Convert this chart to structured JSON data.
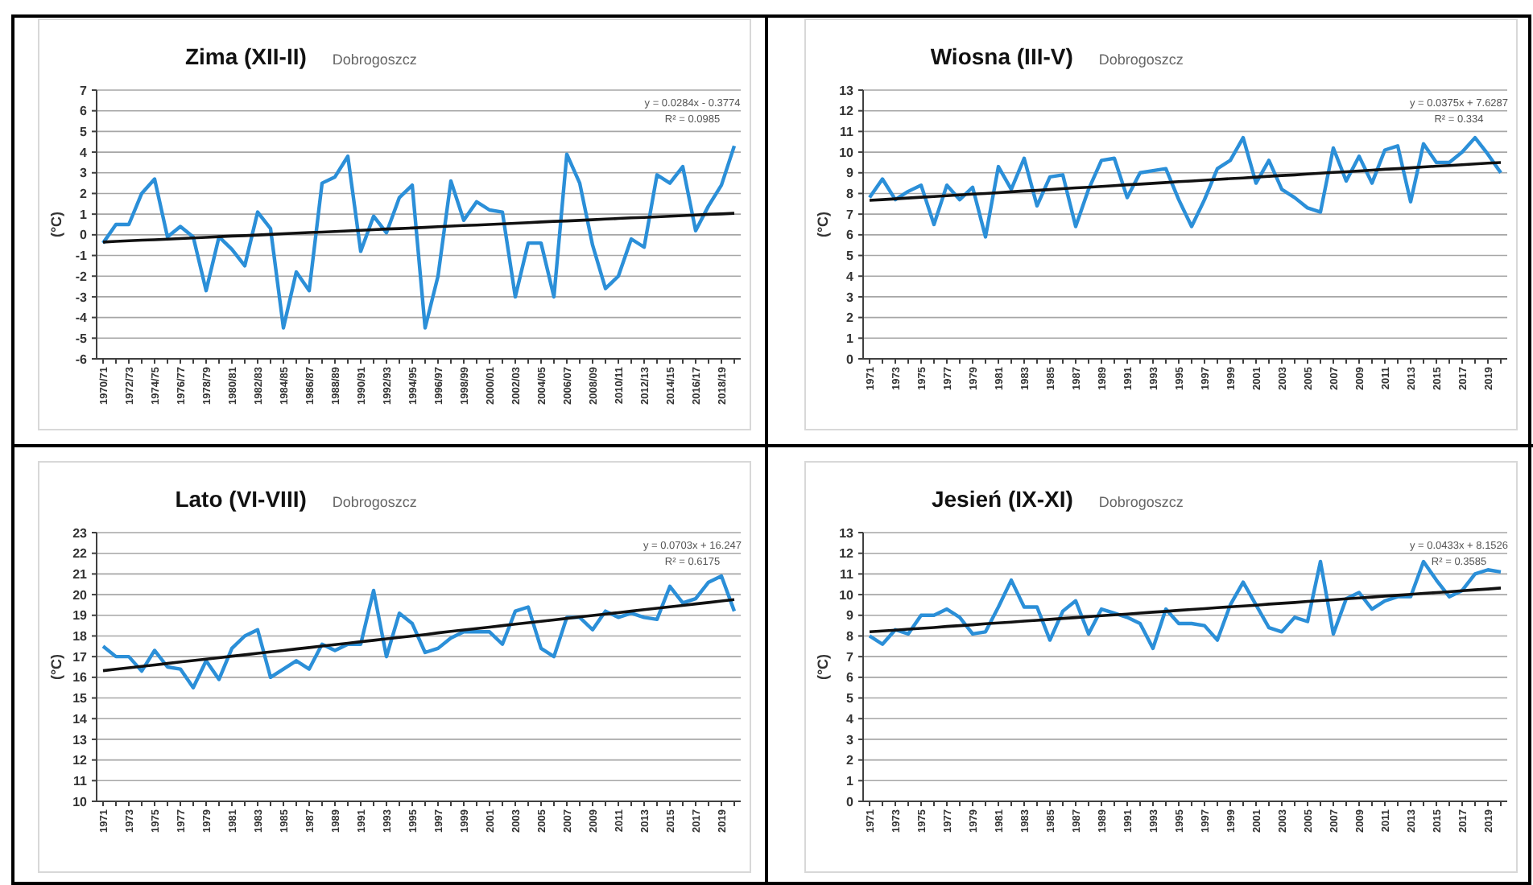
{
  "chart_data": [
    {
      "type": "line",
      "title": "Zima (XII-II)",
      "subtitle": "Dobrogoszcz",
      "ylabel": "(°C)",
      "annotations": [
        "y = 0.0284x - 0.3774",
        "R² = 0.0985"
      ],
      "grid": "y",
      "ylim": [
        -6,
        7
      ],
      "yticks": [
        -6,
        -5,
        -4,
        -3,
        -2,
        -1,
        0,
        1,
        2,
        3,
        4,
        5,
        6,
        7
      ],
      "categories": [
        "1970/71",
        null,
        "1972/73",
        null,
        "1974/75",
        null,
        "1976/77",
        null,
        "1978/79",
        null,
        "1980/81",
        null,
        "1982/83",
        null,
        "1984/85",
        null,
        "1986/87",
        null,
        "1988/89",
        null,
        "1990/91",
        null,
        "1992/93",
        null,
        "1994/95",
        null,
        "1996/97",
        null,
        "1998/99",
        null,
        "2000/01",
        null,
        "2002/03",
        null,
        "2004/05",
        null,
        "2006/07",
        null,
        "2008/09",
        null,
        "2010/11",
        null,
        "2012/13",
        null,
        "2014/15",
        null,
        "2016/17",
        null,
        "2018/19",
        null
      ],
      "series": [
        {
          "color": "#2b8fd8",
          "values": [
            -0.4,
            0.5,
            0.5,
            2.0,
            2.7,
            -0.1,
            0.4,
            -0.1,
            -2.7,
            -0.1,
            -0.7,
            -1.5,
            1.1,
            0.3,
            -4.5,
            -1.8,
            -2.7,
            2.5,
            2.8,
            3.8,
            -0.8,
            0.9,
            0.1,
            1.8,
            2.4,
            -4.5,
            -2.0,
            2.6,
            0.7,
            1.6,
            1.2,
            1.1,
            -3.0,
            -0.4,
            -0.4,
            -3.0,
            3.9,
            2.5,
            -0.5,
            -2.6,
            -2.0,
            -0.2,
            -0.6,
            2.9,
            2.5,
            3.3,
            0.2,
            1.4,
            2.4,
            4.3
          ]
        },
        {
          "type": "line",
          "color": "#111111",
          "values": [
            -0.35,
            -0.32,
            -0.29,
            -0.26,
            -0.24,
            -0.21,
            -0.18,
            -0.15,
            -0.12,
            -0.09,
            -0.06,
            -0.04,
            -0.01,
            0.02,
            0.05,
            0.08,
            0.11,
            0.13,
            0.16,
            0.19,
            0.22,
            0.25,
            0.28,
            0.3,
            0.33,
            0.36,
            0.39,
            0.42,
            0.45,
            0.47,
            0.5,
            0.53,
            0.56,
            0.59,
            0.62,
            0.65,
            0.67,
            0.7,
            0.73,
            0.76,
            0.79,
            0.82,
            0.84,
            0.87,
            0.9,
            0.93,
            0.96,
            0.99,
            1.01,
            1.04
          ]
        }
      ]
    },
    {
      "type": "line",
      "title": "Wiosna (III-V)",
      "subtitle": "Dobrogoszcz",
      "ylabel": "(°C)",
      "annotations": [
        "y = 0.0375x + 7.6287",
        "R² = 0.334"
      ],
      "grid": "y",
      "xlim": [
        1970.5,
        2020.5
      ],
      "ylim": [
        0,
        13
      ],
      "yticks": [
        0,
        1,
        2,
        3,
        4,
        5,
        6,
        7,
        8,
        9,
        10,
        11,
        12,
        13
      ],
      "xticks": [
        1971,
        1973,
        1975,
        1977,
        1979,
        1981,
        1983,
        1985,
        1987,
        1989,
        1991,
        1993,
        1995,
        1997,
        1999,
        2001,
        2003,
        2005,
        2007,
        2009,
        2011,
        2013,
        2015,
        2017,
        2019
      ],
      "x": [
        1971,
        1972,
        1973,
        1974,
        1975,
        1976,
        1977,
        1978,
        1979,
        1980,
        1981,
        1982,
        1983,
        1984,
        1985,
        1986,
        1987,
        1988,
        1989,
        1990,
        1991,
        1992,
        1993,
        1994,
        1995,
        1996,
        1997,
        1998,
        1999,
        2000,
        2001,
        2002,
        2003,
        2004,
        2005,
        2006,
        2007,
        2008,
        2009,
        2010,
        2011,
        2012,
        2013,
        2014,
        2015,
        2016,
        2017,
        2018,
        2019,
        2020
      ],
      "series": [
        {
          "color": "#2b8fd8",
          "values": [
            7.8,
            8.7,
            7.7,
            8.1,
            8.4,
            6.5,
            8.4,
            7.7,
            8.3,
            5.9,
            9.3,
            8.2,
            9.7,
            7.4,
            8.8,
            8.9,
            6.4,
            8.2,
            9.6,
            9.7,
            7.8,
            9.0,
            9.1,
            9.2,
            7.7,
            6.4,
            7.7,
            9.2,
            9.6,
            10.7,
            8.5,
            9.6,
            8.2,
            7.8,
            7.3,
            7.1,
            10.2,
            8.6,
            9.8,
            8.5,
            10.1,
            10.3,
            7.6,
            10.4,
            9.5,
            9.5,
            10.0,
            10.7,
            9.9,
            9.0
          ]
        },
        {
          "type": "line",
          "color": "#111111",
          "values": [
            7.67,
            7.7,
            7.74,
            7.78,
            7.82,
            7.85,
            7.89,
            7.93,
            7.97,
            8.0,
            8.04,
            8.08,
            8.12,
            8.15,
            8.19,
            8.23,
            8.27,
            8.3,
            8.34,
            8.38,
            8.42,
            8.45,
            8.49,
            8.53,
            8.57,
            8.6,
            8.64,
            8.68,
            8.72,
            8.75,
            8.79,
            8.83,
            8.87,
            8.9,
            8.94,
            8.98,
            9.02,
            9.05,
            9.09,
            9.13,
            9.17,
            9.2,
            9.24,
            9.28,
            9.32,
            9.35,
            9.39,
            9.43,
            9.47,
            9.5
          ]
        }
      ]
    },
    {
      "type": "line",
      "title": "Lato (VI-VIII)",
      "subtitle": "Dobrogoszcz",
      "ylabel": "(°C)",
      "annotations": [
        "y = 0.0703x + 16.247",
        "R² = 0.6175"
      ],
      "grid": "y",
      "xlim": [
        1970.5,
        2020.5
      ],
      "ylim": [
        10,
        23
      ],
      "yticks": [
        10,
        11,
        12,
        13,
        14,
        15,
        16,
        17,
        18,
        19,
        20,
        21,
        22,
        23
      ],
      "xticks": [
        1971,
        1973,
        1975,
        1977,
        1979,
        1981,
        1983,
        1985,
        1987,
        1989,
        1991,
        1993,
        1995,
        1997,
        1999,
        2001,
        2003,
        2005,
        2007,
        2009,
        2011,
        2013,
        2015,
        2017,
        2019
      ],
      "x": [
        1971,
        1972,
        1973,
        1974,
        1975,
        1976,
        1977,
        1978,
        1979,
        1980,
        1981,
        1982,
        1983,
        1984,
        1985,
        1986,
        1987,
        1988,
        1989,
        1990,
        1991,
        1992,
        1993,
        1994,
        1995,
        1996,
        1997,
        1998,
        1999,
        2000,
        2001,
        2002,
        2003,
        2004,
        2005,
        2006,
        2007,
        2008,
        2009,
        2010,
        2011,
        2012,
        2013,
        2014,
        2015,
        2016,
        2017,
        2018,
        2019,
        2020
      ],
      "series": [
        {
          "color": "#2b8fd8",
          "values": [
            17.5,
            17.0,
            17.0,
            16.3,
            17.3,
            16.5,
            16.4,
            15.5,
            16.8,
            15.9,
            17.4,
            18.0,
            18.3,
            16.0,
            16.4,
            16.8,
            16.4,
            17.6,
            17.3,
            17.6,
            17.6,
            20.2,
            17.0,
            19.1,
            18.6,
            17.2,
            17.4,
            17.9,
            18.2,
            18.2,
            18.2,
            17.6,
            19.2,
            19.4,
            17.4,
            17.0,
            18.9,
            18.9,
            18.3,
            19.2,
            18.9,
            19.1,
            18.9,
            18.8,
            20.4,
            19.6,
            19.8,
            20.6,
            20.9,
            19.2
          ]
        },
        {
          "type": "line",
          "color": "#111111",
          "values": [
            16.32,
            16.39,
            16.46,
            16.53,
            16.6,
            16.67,
            16.74,
            16.81,
            16.88,
            16.95,
            17.02,
            17.09,
            17.16,
            17.23,
            17.3,
            17.37,
            17.44,
            17.51,
            17.58,
            17.65,
            17.72,
            17.79,
            17.86,
            17.93,
            18.0,
            18.07,
            18.15,
            18.22,
            18.29,
            18.36,
            18.43,
            18.5,
            18.57,
            18.64,
            18.71,
            18.78,
            18.85,
            18.92,
            18.99,
            19.06,
            19.13,
            19.2,
            19.27,
            19.34,
            19.41,
            19.48,
            19.55,
            19.62,
            19.69,
            19.76
          ]
        }
      ]
    },
    {
      "type": "line",
      "title": "Jesień (IX-XI)",
      "subtitle": "Dobrogoszcz",
      "ylabel": "(°C)",
      "annotations": [
        "y = 0.0433x + 8.1526",
        "R² = 0.3585"
      ],
      "grid": "y",
      "xlim": [
        1970.5,
        2020.5
      ],
      "ylim": [
        0,
        13
      ],
      "yticks": [
        0,
        1,
        2,
        3,
        4,
        5,
        6,
        7,
        8,
        9,
        10,
        11,
        12,
        13
      ],
      "xticks": [
        1971,
        1973,
        1975,
        1977,
        1979,
        1981,
        1983,
        1985,
        1987,
        1989,
        1991,
        1993,
        1995,
        1997,
        1999,
        2001,
        2003,
        2005,
        2007,
        2009,
        2011,
        2013,
        2015,
        2017,
        2019
      ],
      "x": [
        1971,
        1972,
        1973,
        1974,
        1975,
        1976,
        1977,
        1978,
        1979,
        1980,
        1981,
        1982,
        1983,
        1984,
        1985,
        1986,
        1987,
        1988,
        1989,
        1990,
        1991,
        1992,
        1993,
        1994,
        1995,
        1996,
        1997,
        1998,
        1999,
        2000,
        2001,
        2002,
        2003,
        2004,
        2005,
        2006,
        2007,
        2008,
        2009,
        2010,
        2011,
        2012,
        2013,
        2014,
        2015,
        2016,
        2017,
        2018,
        2019,
        2020
      ],
      "series": [
        {
          "color": "#2b8fd8",
          "values": [
            8.0,
            7.6,
            8.3,
            8.1,
            9.0,
            9.0,
            9.3,
            8.9,
            8.1,
            8.2,
            9.4,
            10.7,
            9.4,
            9.4,
            7.8,
            9.2,
            9.7,
            8.1,
            9.3,
            9.1,
            8.9,
            8.6,
            7.4,
            9.3,
            8.6,
            8.6,
            8.5,
            7.8,
            9.5,
            10.6,
            9.5,
            8.4,
            8.2,
            8.9,
            8.7,
            11.6,
            8.1,
            9.8,
            10.1,
            9.3,
            9.7,
            9.9,
            9.9,
            11.6,
            10.7,
            9.9,
            10.2,
            11.0,
            11.2,
            11.1
          ]
        },
        {
          "type": "line",
          "color": "#111111",
          "values": [
            8.2,
            8.24,
            8.28,
            8.33,
            8.37,
            8.41,
            8.46,
            8.5,
            8.54,
            8.59,
            8.63,
            8.67,
            8.72,
            8.76,
            8.8,
            8.85,
            8.89,
            8.93,
            8.98,
            9.02,
            9.06,
            9.11,
            9.15,
            9.19,
            9.24,
            9.28,
            9.32,
            9.37,
            9.41,
            9.45,
            9.49,
            9.54,
            9.58,
            9.62,
            9.67,
            9.71,
            9.75,
            9.8,
            9.84,
            9.88,
            9.93,
            9.97,
            10.01,
            10.06,
            10.1,
            10.14,
            10.19,
            10.23,
            10.27,
            10.32
          ]
        }
      ]
    }
  ]
}
